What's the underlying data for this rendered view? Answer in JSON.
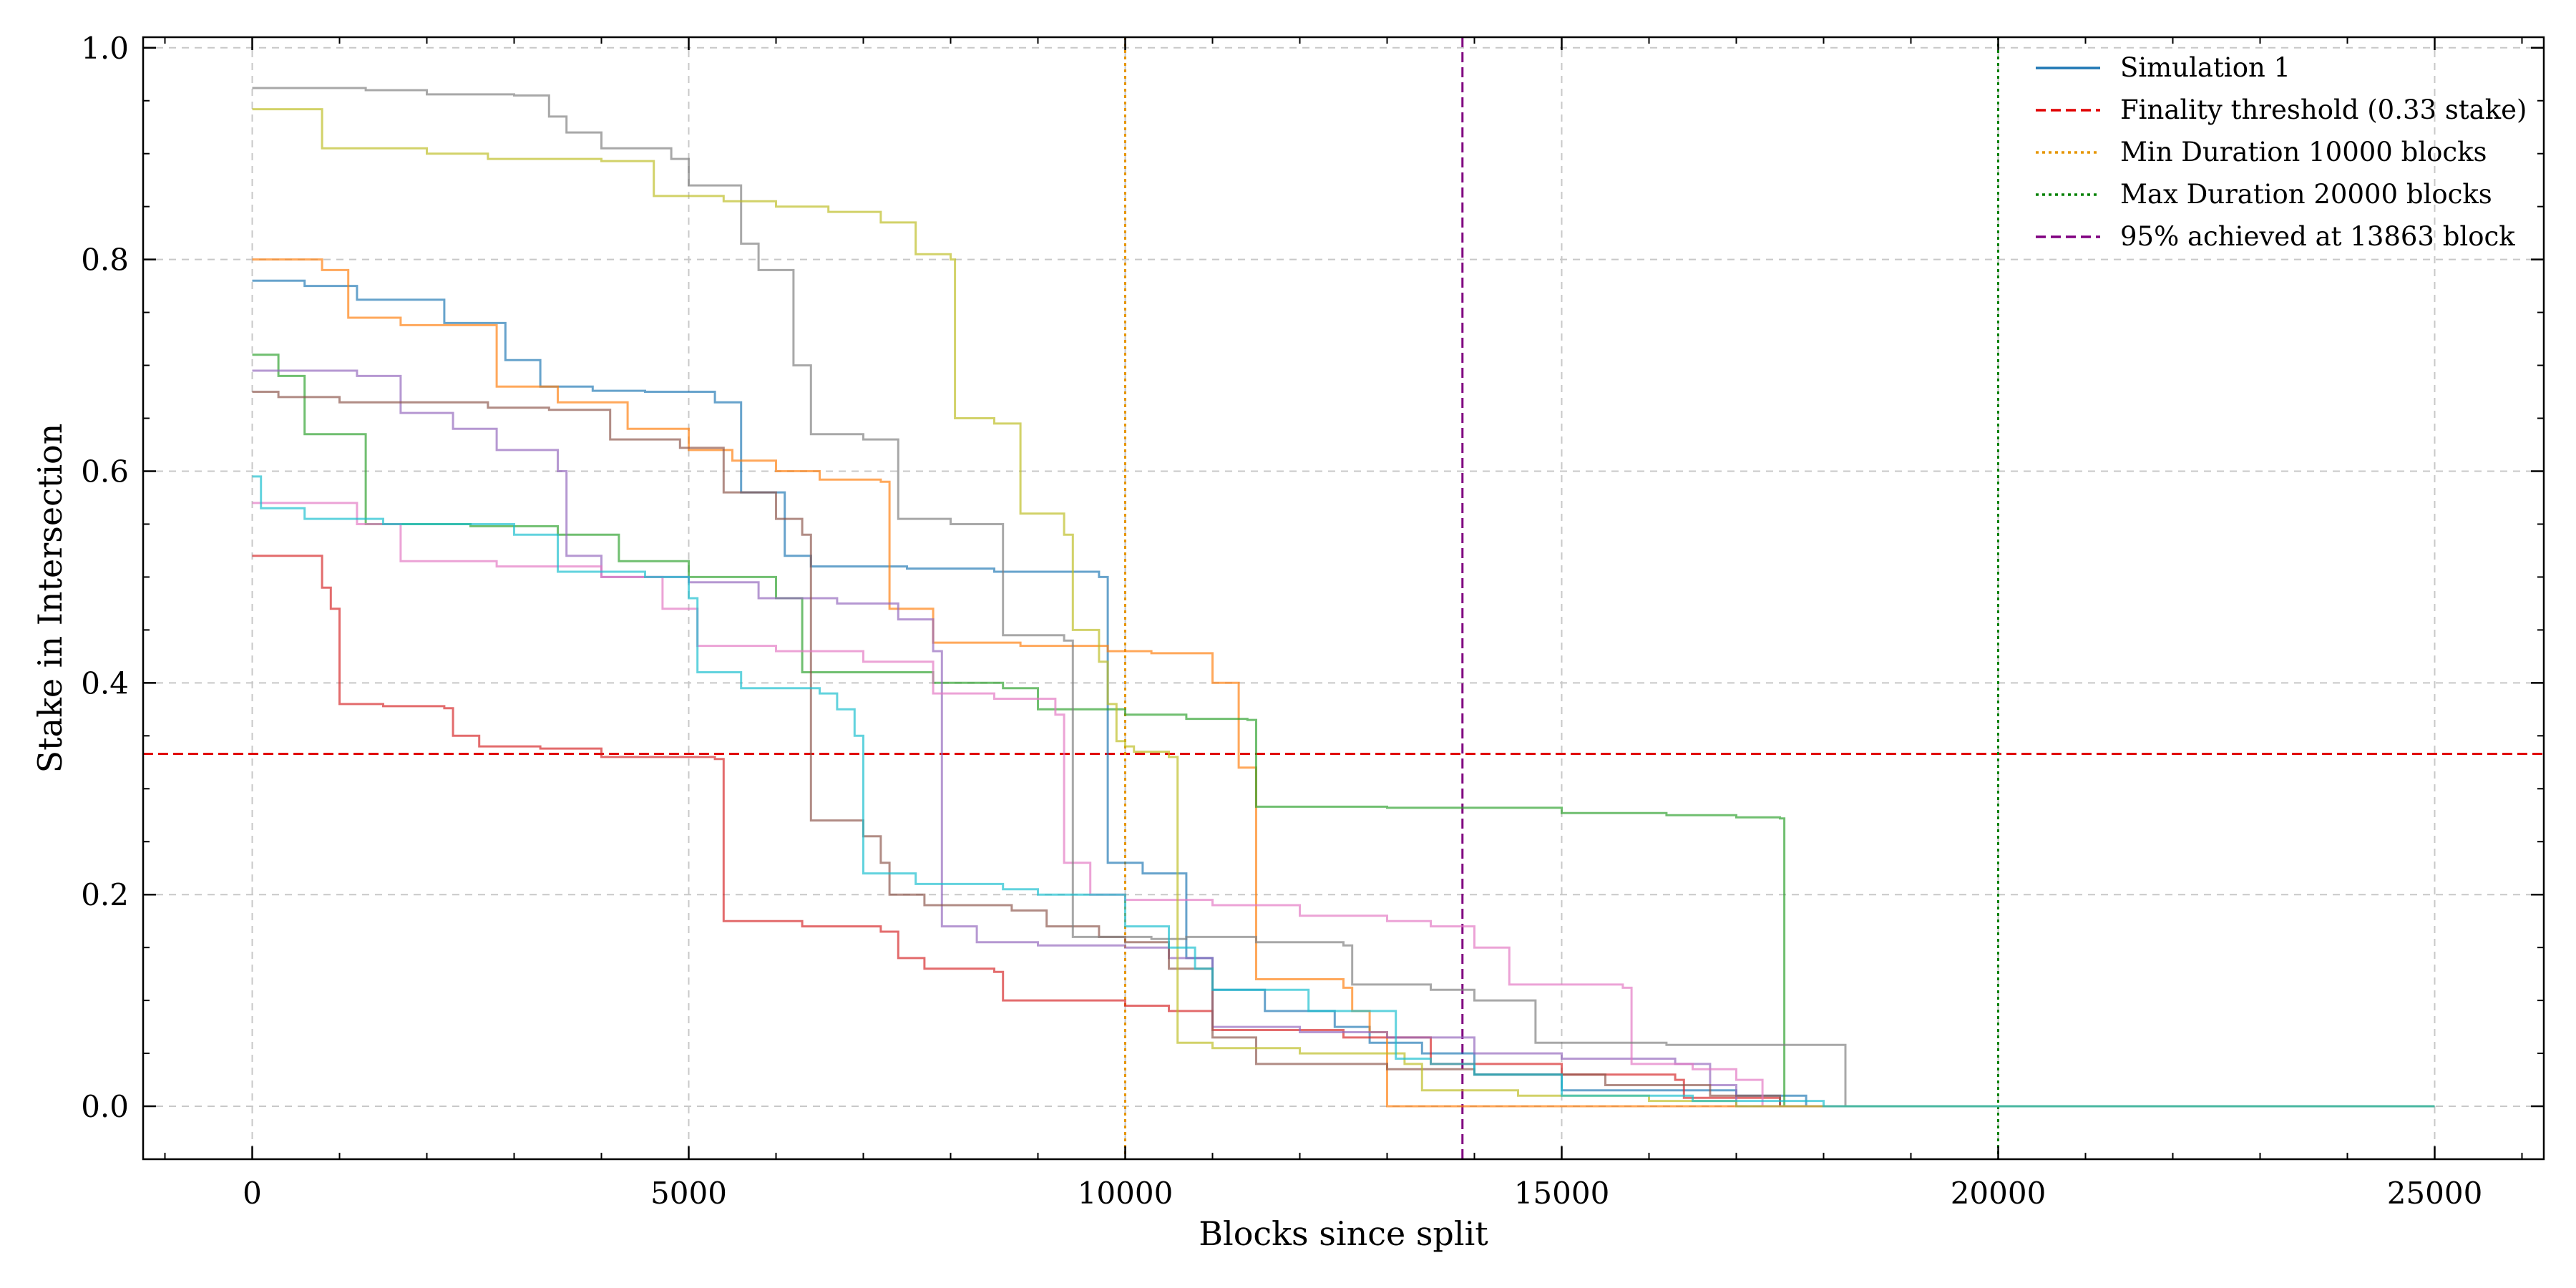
{
  "chart_data": {
    "type": "line",
    "title": "",
    "xlabel": "Blocks since split",
    "ylabel": "Stake in Intersection",
    "xlim": [
      -1250,
      26250
    ],
    "ylim": [
      -0.05,
      1.01
    ],
    "xticks": [
      0,
      5000,
      10000,
      15000,
      20000,
      25000
    ],
    "xtick_labels": [
      "0",
      "5000",
      "10000",
      "15000",
      "20000",
      "25000"
    ],
    "yticks": [
      0.0,
      0.2,
      0.4,
      0.6,
      0.8,
      1.0
    ],
    "ytick_labels": [
      "0.0",
      "0.2",
      "0.4",
      "0.6",
      "0.8",
      "1.0"
    ],
    "grid": true,
    "legend_position": "top-right",
    "legend": [
      {
        "label": "Simulation 1",
        "color": "#1f77b4",
        "style": "solid"
      },
      {
        "label": "Finality threshold (0.33 stake)",
        "color": "#e00000",
        "style": "dashed"
      },
      {
        "label": "Min Duration 10000 blocks",
        "color": "#e69500",
        "style": "dotted"
      },
      {
        "label": "Max Duration 20000 blocks",
        "color": "#008000",
        "style": "dotted"
      },
      {
        "label": "95% achieved at 13863 block",
        "color": "#800080",
        "style": "dashed"
      }
    ],
    "reference_lines": [
      {
        "orientation": "horizontal",
        "value": 0.333,
        "color": "#e00000",
        "style": "dashed"
      },
      {
        "orientation": "vertical",
        "value": 10000,
        "color": "#e69500",
        "style": "dotted"
      },
      {
        "orientation": "vertical",
        "value": 20000,
        "color": "#008000",
        "style": "dotted"
      },
      {
        "orientation": "vertical",
        "value": 13863,
        "color": "#800080",
        "style": "dashed"
      }
    ],
    "series": [
      {
        "name": "Simulation 1",
        "color": "#1f77b4",
        "points": [
          [
            0,
            0.78
          ],
          [
            600,
            0.775
          ],
          [
            1200,
            0.762
          ],
          [
            2200,
            0.74
          ],
          [
            2900,
            0.705
          ],
          [
            3300,
            0.68
          ],
          [
            3900,
            0.676
          ],
          [
            4500,
            0.675
          ],
          [
            5300,
            0.665
          ],
          [
            5600,
            0.58
          ],
          [
            6100,
            0.52
          ],
          [
            6400,
            0.51
          ],
          [
            7500,
            0.508
          ],
          [
            8500,
            0.505
          ],
          [
            9700,
            0.5
          ],
          [
            9800,
            0.23
          ],
          [
            10200,
            0.22
          ],
          [
            10700,
            0.14
          ],
          [
            11000,
            0.11
          ],
          [
            11600,
            0.09
          ],
          [
            12400,
            0.075
          ],
          [
            12800,
            0.06
          ],
          [
            13400,
            0.05
          ],
          [
            14000,
            0.03
          ],
          [
            15000,
            0.015
          ],
          [
            17000,
            0.01
          ],
          [
            17800,
            0.0
          ],
          [
            25000,
            0.0
          ]
        ]
      },
      {
        "name": "",
        "color": "#ff7f0e",
        "points": [
          [
            0,
            0.8
          ],
          [
            500,
            0.8
          ],
          [
            800,
            0.79
          ],
          [
            1100,
            0.745
          ],
          [
            1700,
            0.738
          ],
          [
            2800,
            0.68
          ],
          [
            3500,
            0.665
          ],
          [
            4300,
            0.64
          ],
          [
            5000,
            0.62
          ],
          [
            5500,
            0.61
          ],
          [
            6000,
            0.6
          ],
          [
            6500,
            0.592
          ],
          [
            7200,
            0.59
          ],
          [
            7300,
            0.47
          ],
          [
            7800,
            0.438
          ],
          [
            8800,
            0.435
          ],
          [
            9800,
            0.43
          ],
          [
            10300,
            0.428
          ],
          [
            11000,
            0.4
          ],
          [
            11300,
            0.32
          ],
          [
            11500,
            0.12
          ],
          [
            12500,
            0.112
          ],
          [
            12600,
            0.09
          ],
          [
            12800,
            0.07
          ],
          [
            13000,
            0.0
          ],
          [
            25000,
            0.0
          ]
        ]
      },
      {
        "name": "",
        "color": "#2ca02c",
        "points": [
          [
            0,
            0.71
          ],
          [
            300,
            0.69
          ],
          [
            600,
            0.635
          ],
          [
            1300,
            0.55
          ],
          [
            2500,
            0.548
          ],
          [
            3500,
            0.54
          ],
          [
            4200,
            0.515
          ],
          [
            5000,
            0.5
          ],
          [
            6000,
            0.48
          ],
          [
            6300,
            0.41
          ],
          [
            7800,
            0.4
          ],
          [
            8600,
            0.395
          ],
          [
            9000,
            0.375
          ],
          [
            10000,
            0.37
          ],
          [
            10700,
            0.366
          ],
          [
            11400,
            0.365
          ],
          [
            11500,
            0.283
          ],
          [
            13000,
            0.282
          ],
          [
            15000,
            0.277
          ],
          [
            16200,
            0.275
          ],
          [
            17000,
            0.273
          ],
          [
            17500,
            0.272
          ],
          [
            17550,
            0.0
          ],
          [
            25000,
            0.0
          ]
        ]
      },
      {
        "name": "",
        "color": "#d62728",
        "points": [
          [
            0,
            0.52
          ],
          [
            800,
            0.49
          ],
          [
            900,
            0.47
          ],
          [
            1000,
            0.38
          ],
          [
            1500,
            0.378
          ],
          [
            2200,
            0.376
          ],
          [
            2300,
            0.35
          ],
          [
            2600,
            0.34
          ],
          [
            3300,
            0.338
          ],
          [
            4000,
            0.33
          ],
          [
            5300,
            0.328
          ],
          [
            5400,
            0.175
          ],
          [
            6300,
            0.17
          ],
          [
            7200,
            0.165
          ],
          [
            7400,
            0.14
          ],
          [
            7700,
            0.13
          ],
          [
            8500,
            0.127
          ],
          [
            8600,
            0.1
          ],
          [
            10000,
            0.095
          ],
          [
            10500,
            0.09
          ],
          [
            11000,
            0.072
          ],
          [
            12500,
            0.065
          ],
          [
            13500,
            0.04
          ],
          [
            15000,
            0.03
          ],
          [
            16300,
            0.025
          ],
          [
            16400,
            0.008
          ],
          [
            17500,
            0.0
          ],
          [
            25000,
            0.0
          ]
        ]
      },
      {
        "name": "",
        "color": "#9467bd",
        "points": [
          [
            0,
            0.695
          ],
          [
            1200,
            0.69
          ],
          [
            1700,
            0.655
          ],
          [
            2300,
            0.64
          ],
          [
            2800,
            0.62
          ],
          [
            3500,
            0.6
          ],
          [
            3600,
            0.52
          ],
          [
            4000,
            0.5
          ],
          [
            5000,
            0.495
          ],
          [
            5800,
            0.48
          ],
          [
            6700,
            0.475
          ],
          [
            7400,
            0.46
          ],
          [
            7800,
            0.43
          ],
          [
            7900,
            0.17
          ],
          [
            8300,
            0.155
          ],
          [
            9000,
            0.152
          ],
          [
            10000,
            0.15
          ],
          [
            10500,
            0.14
          ],
          [
            11000,
            0.075
          ],
          [
            12000,
            0.07
          ],
          [
            13000,
            0.065
          ],
          [
            14000,
            0.05
          ],
          [
            15000,
            0.045
          ],
          [
            16300,
            0.04
          ],
          [
            16700,
            0.02
          ],
          [
            17000,
            0.0
          ],
          [
            25000,
            0.0
          ]
        ]
      },
      {
        "name": "",
        "color": "#8c564b",
        "points": [
          [
            0,
            0.675
          ],
          [
            300,
            0.67
          ],
          [
            1000,
            0.665
          ],
          [
            2700,
            0.66
          ],
          [
            3400,
            0.658
          ],
          [
            4100,
            0.63
          ],
          [
            4900,
            0.622
          ],
          [
            5400,
            0.58
          ],
          [
            6000,
            0.555
          ],
          [
            6300,
            0.54
          ],
          [
            6400,
            0.27
          ],
          [
            7000,
            0.255
          ],
          [
            7200,
            0.23
          ],
          [
            7300,
            0.2
          ],
          [
            7700,
            0.19
          ],
          [
            8700,
            0.185
          ],
          [
            9100,
            0.17
          ],
          [
            9700,
            0.16
          ],
          [
            10000,
            0.155
          ],
          [
            10500,
            0.13
          ],
          [
            11000,
            0.065
          ],
          [
            11500,
            0.04
          ],
          [
            13000,
            0.035
          ],
          [
            14000,
            0.03
          ],
          [
            15500,
            0.02
          ],
          [
            16700,
            0.01
          ],
          [
            17500,
            0.0
          ],
          [
            25000,
            0.0
          ]
        ]
      },
      {
        "name": "",
        "color": "#e377c2",
        "points": [
          [
            0,
            0.57
          ],
          [
            700,
            0.57
          ],
          [
            1200,
            0.55
          ],
          [
            1700,
            0.515
          ],
          [
            2800,
            0.51
          ],
          [
            4000,
            0.5
          ],
          [
            4700,
            0.47
          ],
          [
            5100,
            0.435
          ],
          [
            6000,
            0.43
          ],
          [
            7000,
            0.42
          ],
          [
            7800,
            0.39
          ],
          [
            8500,
            0.385
          ],
          [
            9200,
            0.37
          ],
          [
            9300,
            0.23
          ],
          [
            9600,
            0.2
          ],
          [
            10000,
            0.195
          ],
          [
            11000,
            0.19
          ],
          [
            12000,
            0.18
          ],
          [
            13000,
            0.175
          ],
          [
            13500,
            0.17
          ],
          [
            14000,
            0.15
          ],
          [
            14400,
            0.115
          ],
          [
            15700,
            0.112
          ],
          [
            15800,
            0.04
          ],
          [
            16500,
            0.035
          ],
          [
            17000,
            0.025
          ],
          [
            17300,
            0.0
          ],
          [
            25000,
            0.0
          ]
        ]
      },
      {
        "name": "",
        "color": "#7f7f7f",
        "points": [
          [
            0,
            0.962
          ],
          [
            1300,
            0.96
          ],
          [
            2000,
            0.956
          ],
          [
            3000,
            0.955
          ],
          [
            3400,
            0.935
          ],
          [
            3600,
            0.92
          ],
          [
            4000,
            0.905
          ],
          [
            4800,
            0.895
          ],
          [
            5000,
            0.87
          ],
          [
            5600,
            0.815
          ],
          [
            5800,
            0.79
          ],
          [
            6200,
            0.7
          ],
          [
            6400,
            0.635
          ],
          [
            7000,
            0.63
          ],
          [
            7400,
            0.555
          ],
          [
            8000,
            0.55
          ],
          [
            8600,
            0.445
          ],
          [
            9300,
            0.44
          ],
          [
            9400,
            0.16
          ],
          [
            10300,
            0.158
          ],
          [
            10700,
            0.16
          ],
          [
            11500,
            0.155
          ],
          [
            12500,
            0.152
          ],
          [
            12600,
            0.115
          ],
          [
            13500,
            0.11
          ],
          [
            14000,
            0.1
          ],
          [
            14700,
            0.06
          ],
          [
            15700,
            0.06
          ],
          [
            16200,
            0.058
          ],
          [
            18200,
            0.058
          ],
          [
            18250,
            0.0
          ],
          [
            25000,
            0.0
          ]
        ]
      },
      {
        "name": "",
        "color": "#bcbd22",
        "points": [
          [
            0,
            0.942
          ],
          [
            800,
            0.905
          ],
          [
            2000,
            0.9
          ],
          [
            2700,
            0.895
          ],
          [
            4000,
            0.893
          ],
          [
            4600,
            0.86
          ],
          [
            5400,
            0.855
          ],
          [
            6000,
            0.85
          ],
          [
            6600,
            0.845
          ],
          [
            7200,
            0.835
          ],
          [
            7600,
            0.805
          ],
          [
            8000,
            0.8
          ],
          [
            8050,
            0.65
          ],
          [
            8500,
            0.645
          ],
          [
            8800,
            0.56
          ],
          [
            9300,
            0.54
          ],
          [
            9400,
            0.45
          ],
          [
            9700,
            0.42
          ],
          [
            9800,
            0.38
          ],
          [
            9900,
            0.345
          ],
          [
            10000,
            0.34
          ],
          [
            10100,
            0.335
          ],
          [
            10500,
            0.33
          ],
          [
            10600,
            0.06
          ],
          [
            11000,
            0.055
          ],
          [
            12000,
            0.05
          ],
          [
            13200,
            0.04
          ],
          [
            13400,
            0.015
          ],
          [
            14500,
            0.01
          ],
          [
            16000,
            0.005
          ],
          [
            17000,
            0.0
          ],
          [
            25000,
            0.0
          ]
        ]
      },
      {
        "name": "",
        "color": "#17becf",
        "points": [
          [
            0,
            0.595
          ],
          [
            100,
            0.565
          ],
          [
            600,
            0.555
          ],
          [
            1500,
            0.55
          ],
          [
            3000,
            0.54
          ],
          [
            3500,
            0.505
          ],
          [
            4500,
            0.5
          ],
          [
            5000,
            0.48
          ],
          [
            5100,
            0.41
          ],
          [
            5600,
            0.395
          ],
          [
            6500,
            0.39
          ],
          [
            6700,
            0.375
          ],
          [
            6900,
            0.35
          ],
          [
            7000,
            0.22
          ],
          [
            7600,
            0.21
          ],
          [
            8600,
            0.205
          ],
          [
            9000,
            0.2
          ],
          [
            10000,
            0.17
          ],
          [
            10500,
            0.15
          ],
          [
            10800,
            0.13
          ],
          [
            11000,
            0.11
          ],
          [
            12100,
            0.09
          ],
          [
            13100,
            0.045
          ],
          [
            13500,
            0.04
          ],
          [
            14000,
            0.03
          ],
          [
            15000,
            0.01
          ],
          [
            16500,
            0.005
          ],
          [
            18000,
            0.0
          ],
          [
            25000,
            0.0
          ]
        ]
      }
    ]
  }
}
